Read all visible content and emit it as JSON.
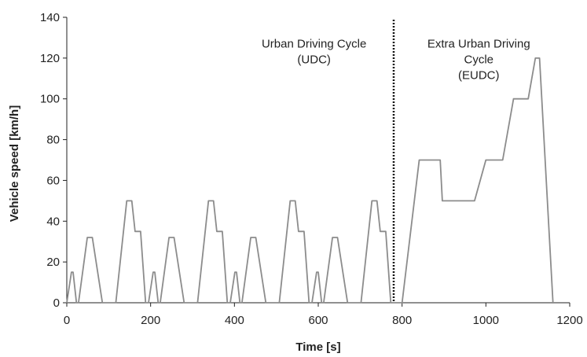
{
  "chart_data": {
    "type": "line",
    "title": "",
    "xlabel": "Time [s]",
    "ylabel": "Vehicle speed [km/h]",
    "xlim": [
      0,
      1200
    ],
    "ylim": [
      0,
      140
    ],
    "xticks": [
      0,
      200,
      400,
      600,
      800,
      1000,
      1200
    ],
    "yticks": [
      0,
      20,
      40,
      60,
      80,
      100,
      120,
      140
    ],
    "grid": false,
    "legend": "none",
    "line_color": "#8c8c8c",
    "divider": {
      "x": 780,
      "style": "dotted",
      "color": "#111111"
    },
    "annotations": [
      {
        "lines": [
          "Urban Driving Cycle",
          "(UDC)"
        ],
        "x": 590,
        "y": 127
      },
      {
        "lines": [
          "Extra Urban Driving",
          "Cycle",
          "(EUDC)"
        ],
        "x": 983,
        "y": 127
      }
    ],
    "series": [
      {
        "x": [
          0,
          11,
          15,
          23,
          25,
          28,
          49,
          61,
          85,
          96,
          117,
          143,
          155,
          163,
          176,
          188,
          195,
          206,
          210,
          218,
          220,
          223,
          244,
          256,
          280,
          291,
          312,
          338,
          350,
          358,
          371,
          383,
          390,
          401,
          405,
          413,
          415,
          418,
          439,
          451,
          475,
          486,
          507,
          533,
          545,
          553,
          566,
          578,
          585,
          596,
          600,
          608,
          610,
          613,
          634,
          646,
          670,
          681,
          702,
          728,
          740,
          748,
          761,
          773,
          780,
          800,
          841,
          891,
          896,
          973,
          1000,
          1040,
          1066,
          1101,
          1118,
          1128,
          1160
        ],
        "y": [
          0,
          15,
          15,
          0,
          0,
          0,
          32,
          32,
          0,
          0,
          0,
          50,
          50,
          35,
          35,
          0,
          0,
          15,
          15,
          0,
          0,
          0,
          32,
          32,
          0,
          0,
          0,
          50,
          50,
          35,
          35,
          0,
          0,
          15,
          15,
          0,
          0,
          0,
          32,
          32,
          0,
          0,
          0,
          50,
          50,
          35,
          35,
          0,
          0,
          15,
          15,
          0,
          0,
          0,
          32,
          32,
          0,
          0,
          0,
          50,
          50,
          35,
          35,
          0,
          0,
          0,
          70,
          70,
          50,
          50,
          70,
          70,
          100,
          100,
          120,
          120,
          0
        ]
      }
    ]
  }
}
